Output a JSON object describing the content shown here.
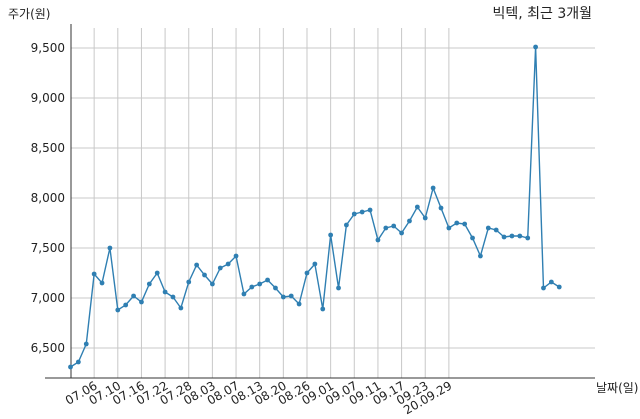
{
  "chart_data": {
    "type": "line",
    "title": "빅텍, 최근 3개월",
    "ylabel": "주가(원)",
    "xlabel": "날짜(일)",
    "ylim": [
      6200,
      9700
    ],
    "yticks": [
      6500,
      7000,
      7500,
      8000,
      8500,
      9000,
      9500
    ],
    "ytick_labels": [
      "6,500",
      "7,000",
      "7,500",
      "8,000",
      "8,500",
      "9,000",
      "9,500"
    ],
    "xtick_labels": [
      "07.06",
      "07.10",
      "07.16",
      "07.22",
      "07.28",
      "08.03",
      "08.07",
      "08.13",
      "08.20",
      "08.26",
      "09.01",
      "09.07",
      "09.11",
      "09.17",
      "09.23",
      "20.09.29"
    ],
    "xtick_indices": [
      3,
      6,
      9,
      12,
      15,
      18,
      21,
      24,
      27,
      30,
      33,
      36,
      39,
      42,
      45,
      48
    ],
    "grid": true,
    "series": [
      {
        "color": "#2f7fb2",
        "values": [
          6310,
          6360,
          6540,
          7240,
          7150,
          7500,
          6880,
          6930,
          7020,
          6960,
          7140,
          7250,
          7060,
          7010,
          6900,
          7160,
          7330,
          7230,
          7140,
          7300,
          7340,
          7420,
          7040,
          7110,
          7140,
          7180,
          7100,
          7010,
          7020,
          6940,
          7250,
          7340,
          6890,
          7630,
          7100,
          7730,
          7840,
          7860,
          7880,
          7580,
          7700,
          7720,
          7650,
          7770,
          7910,
          7800,
          8100,
          7900,
          7700,
          7750,
          7740,
          7600,
          7420,
          7700,
          7680,
          7610,
          7620,
          7620,
          7600,
          9510,
          7100,
          7160,
          7110
        ]
      }
    ]
  }
}
